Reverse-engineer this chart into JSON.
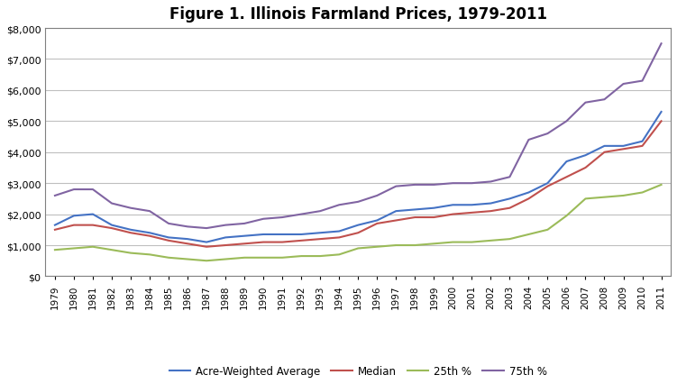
{
  "title": "Figure 1. Illinois Farmland Prices, 1979-2011",
  "years": [
    1979,
    1980,
    1981,
    1982,
    1983,
    1984,
    1985,
    1986,
    1987,
    1988,
    1989,
    1990,
    1991,
    1992,
    1993,
    1994,
    1995,
    1996,
    1997,
    1998,
    1999,
    2000,
    2001,
    2002,
    2003,
    2004,
    2005,
    2006,
    2007,
    2008,
    2009,
    2010,
    2011
  ],
  "acre_weighted_avg": [
    1650,
    1950,
    2000,
    1650,
    1500,
    1400,
    1250,
    1200,
    1100,
    1250,
    1300,
    1350,
    1350,
    1350,
    1400,
    1450,
    1650,
    1800,
    2100,
    2150,
    2200,
    2300,
    2300,
    2350,
    2500,
    2700,
    3000,
    3700,
    3900,
    4200,
    4200,
    4350,
    5300
  ],
  "median": [
    1500,
    1650,
    1650,
    1550,
    1400,
    1300,
    1150,
    1050,
    950,
    1000,
    1050,
    1100,
    1100,
    1150,
    1200,
    1250,
    1400,
    1700,
    1800,
    1900,
    1900,
    2000,
    2050,
    2100,
    2200,
    2500,
    2900,
    3200,
    3500,
    4000,
    4100,
    4200,
    5000
  ],
  "pct25": [
    850,
    900,
    950,
    850,
    750,
    700,
    600,
    550,
    500,
    550,
    600,
    600,
    600,
    650,
    650,
    700,
    900,
    950,
    1000,
    1000,
    1050,
    1100,
    1100,
    1150,
    1200,
    1350,
    1500,
    1950,
    2500,
    2550,
    2600,
    2700,
    2950
  ],
  "pct75": [
    2600,
    2800,
    2800,
    2350,
    2200,
    2100,
    1700,
    1600,
    1550,
    1650,
    1700,
    1850,
    1900,
    2000,
    2100,
    2300,
    2400,
    2600,
    2900,
    2950,
    2950,
    3000,
    3000,
    3050,
    3200,
    4400,
    4600,
    5000,
    5600,
    5700,
    6200,
    6300,
    7500
  ],
  "line_colors": {
    "acre_weighted_avg": "#4472C4",
    "median": "#C0504D",
    "pct25": "#9BBB59",
    "pct75": "#8064A2"
  },
  "ylim": [
    0,
    8000
  ],
  "yticks": [
    0,
    1000,
    2000,
    3000,
    4000,
    5000,
    6000,
    7000,
    8000
  ],
  "legend_labels": [
    "Acre-Weighted Average",
    "Median",
    "25th %",
    "75th %"
  ],
  "background_color": "#FFFFFF",
  "grid_color": "#BFBFBF"
}
